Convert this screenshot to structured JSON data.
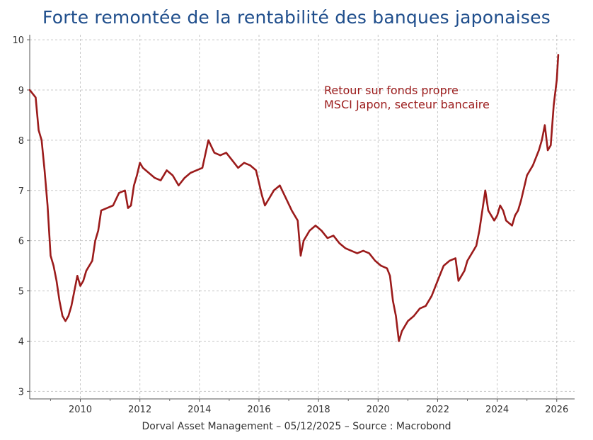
{
  "chart_data": {
    "type": "line",
    "title": "Forte remontée de la rentabilité des banques japonaises",
    "xlabel": "",
    "ylabel": "",
    "xlim": [
      2008.3,
      2026.6
    ],
    "ylim": [
      2.85,
      10.1
    ],
    "x_ticks": [
      2010,
      2012,
      2014,
      2016,
      2018,
      2020,
      2022,
      2024,
      2026
    ],
    "y_ticks": [
      3,
      4,
      5,
      6,
      7,
      8,
      9,
      10
    ],
    "grid": true,
    "legend": [
      "Retour sur fonds propre",
      "MSCI Japon, secteur bancaire"
    ],
    "series": [
      {
        "name": "Retour sur fonds propre - MSCI Japon, secteur bancaire",
        "color": "#9b1b1b",
        "points": [
          [
            2008.3,
            9.0
          ],
          [
            2008.5,
            8.85
          ],
          [
            2008.6,
            8.2
          ],
          [
            2008.7,
            8.0
          ],
          [
            2008.8,
            7.4
          ],
          [
            2008.9,
            6.7
          ],
          [
            2009.0,
            5.7
          ],
          [
            2009.1,
            5.5
          ],
          [
            2009.2,
            5.2
          ],
          [
            2009.3,
            4.8
          ],
          [
            2009.4,
            4.5
          ],
          [
            2009.5,
            4.4
          ],
          [
            2009.6,
            4.5
          ],
          [
            2009.7,
            4.7
          ],
          [
            2009.8,
            5.0
          ],
          [
            2009.9,
            5.3
          ],
          [
            2010.0,
            5.1
          ],
          [
            2010.1,
            5.2
          ],
          [
            2010.2,
            5.4
          ],
          [
            2010.4,
            5.6
          ],
          [
            2010.5,
            6.0
          ],
          [
            2010.6,
            6.2
          ],
          [
            2010.7,
            6.6
          ],
          [
            2010.9,
            6.65
          ],
          [
            2011.1,
            6.7
          ],
          [
            2011.3,
            6.95
          ],
          [
            2011.5,
            7.0
          ],
          [
            2011.6,
            6.65
          ],
          [
            2011.7,
            6.7
          ],
          [
            2011.8,
            7.1
          ],
          [
            2011.9,
            7.3
          ],
          [
            2012.0,
            7.55
          ],
          [
            2012.1,
            7.45
          ],
          [
            2012.3,
            7.35
          ],
          [
            2012.5,
            7.25
          ],
          [
            2012.7,
            7.2
          ],
          [
            2012.9,
            7.4
          ],
          [
            2013.1,
            7.3
          ],
          [
            2013.3,
            7.1
          ],
          [
            2013.5,
            7.25
          ],
          [
            2013.7,
            7.35
          ],
          [
            2013.9,
            7.4
          ],
          [
            2014.1,
            7.45
          ],
          [
            2014.3,
            8.0
          ],
          [
            2014.5,
            7.75
          ],
          [
            2014.7,
            7.7
          ],
          [
            2014.9,
            7.75
          ],
          [
            2015.1,
            7.6
          ],
          [
            2015.3,
            7.45
          ],
          [
            2015.5,
            7.55
          ],
          [
            2015.7,
            7.5
          ],
          [
            2015.9,
            7.4
          ],
          [
            2016.1,
            6.9
          ],
          [
            2016.2,
            6.7
          ],
          [
            2016.3,
            6.8
          ],
          [
            2016.5,
            7.0
          ],
          [
            2016.7,
            7.1
          ],
          [
            2016.9,
            6.85
          ],
          [
            2017.1,
            6.6
          ],
          [
            2017.3,
            6.4
          ],
          [
            2017.4,
            5.7
          ],
          [
            2017.5,
            6.0
          ],
          [
            2017.7,
            6.2
          ],
          [
            2017.9,
            6.3
          ],
          [
            2018.1,
            6.2
          ],
          [
            2018.3,
            6.05
          ],
          [
            2018.5,
            6.1
          ],
          [
            2018.7,
            5.95
          ],
          [
            2018.9,
            5.85
          ],
          [
            2019.1,
            5.8
          ],
          [
            2019.3,
            5.75
          ],
          [
            2019.5,
            5.8
          ],
          [
            2019.7,
            5.75
          ],
          [
            2019.9,
            5.6
          ],
          [
            2020.1,
            5.5
          ],
          [
            2020.3,
            5.45
          ],
          [
            2020.4,
            5.3
          ],
          [
            2020.5,
            4.8
          ],
          [
            2020.6,
            4.5
          ],
          [
            2020.7,
            4.0
          ],
          [
            2020.8,
            4.2
          ],
          [
            2020.9,
            4.3
          ],
          [
            2021.0,
            4.4
          ],
          [
            2021.2,
            4.5
          ],
          [
            2021.4,
            4.65
          ],
          [
            2021.6,
            4.7
          ],
          [
            2021.8,
            4.9
          ],
          [
            2022.0,
            5.2
          ],
          [
            2022.2,
            5.5
          ],
          [
            2022.4,
            5.6
          ],
          [
            2022.6,
            5.65
          ],
          [
            2022.7,
            5.2
          ],
          [
            2022.8,
            5.3
          ],
          [
            2022.9,
            5.4
          ],
          [
            2023.0,
            5.6
          ],
          [
            2023.2,
            5.8
          ],
          [
            2023.3,
            5.9
          ],
          [
            2023.4,
            6.2
          ],
          [
            2023.5,
            6.6
          ],
          [
            2023.6,
            7.0
          ],
          [
            2023.7,
            6.6
          ],
          [
            2023.8,
            6.5
          ],
          [
            2023.9,
            6.4
          ],
          [
            2024.0,
            6.5
          ],
          [
            2024.1,
            6.7
          ],
          [
            2024.2,
            6.6
          ],
          [
            2024.3,
            6.4
          ],
          [
            2024.4,
            6.35
          ],
          [
            2024.5,
            6.3
          ],
          [
            2024.6,
            6.5
          ],
          [
            2024.7,
            6.6
          ],
          [
            2024.8,
            6.8
          ],
          [
            2025.0,
            7.3
          ],
          [
            2025.2,
            7.5
          ],
          [
            2025.4,
            7.8
          ],
          [
            2025.5,
            8.0
          ],
          [
            2025.6,
            8.3
          ],
          [
            2025.7,
            7.8
          ],
          [
            2025.8,
            7.9
          ],
          [
            2025.9,
            8.7
          ],
          [
            2026.0,
            9.2
          ],
          [
            2026.05,
            9.7
          ]
        ]
      }
    ]
  },
  "footer": "Dorval Asset Management – 05/12/2025 –   Source : Macrobond"
}
